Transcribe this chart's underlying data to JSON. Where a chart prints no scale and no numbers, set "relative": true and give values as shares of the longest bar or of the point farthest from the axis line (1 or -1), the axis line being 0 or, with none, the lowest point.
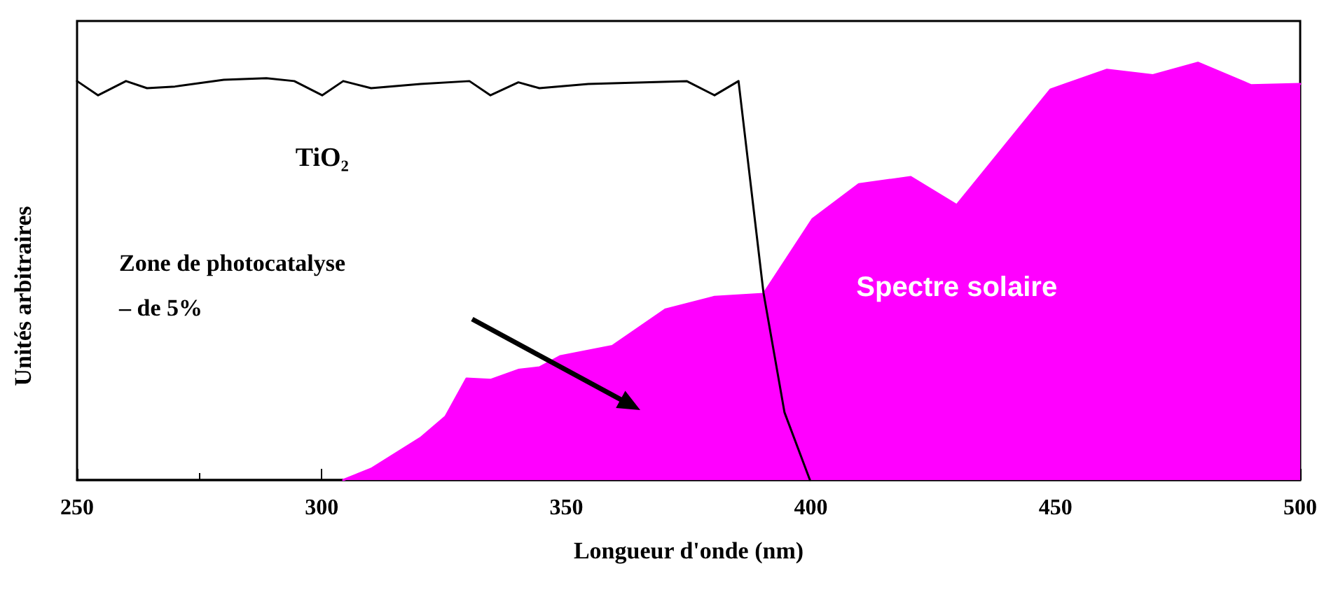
{
  "chart_data": {
    "type": "area",
    "relative": true,
    "xlabel": "Longueur d'onde (nm)",
    "ylabel": "Unités arbitraires",
    "xlim": [
      250,
      500
    ],
    "xticks": [
      250,
      300,
      350,
      400,
      450,
      500
    ],
    "grid": false,
    "legend": false,
    "marker": "none",
    "annotations": [
      "Zone de photocatalyse\n– de 5%"
    ],
    "series": [
      {
        "name": "Spectre solaire",
        "color": "#ff00ff",
        "x": [
          304.4,
          310.1,
          320.2,
          325.3,
          329.6,
          334.5,
          340.2,
          344.5,
          348.8,
          359.4,
          370.3,
          380.3,
          390.3,
          400.3,
          409.8,
          420.4,
          429.8,
          449,
          460.5,
          469.9,
          479.1,
          490,
          500
        ],
        "values": [
          0,
          0.027,
          0.101,
          0.152,
          0.243,
          0.24,
          0.264,
          0.27,
          0.297,
          0.321,
          0.409,
          0.439,
          0.446,
          0.625,
          0.709,
          0.726,
          0.659,
          0.936,
          0.983,
          0.97,
          1,
          0.946,
          0.949
        ]
      },
      {
        "name": "TiO₂",
        "type": "line",
        "color": "#000000",
        "x": [
          250,
          254.3,
          260,
          264.3,
          270,
          280,
          288.7,
          294.4,
          300.1,
          304.4,
          310.1,
          320.2,
          330.2,
          334.5,
          340.2,
          344.5,
          354.5,
          374.6,
          380.3,
          385.2,
          390.3,
          394.6,
          399.8
        ],
        "values": [
          0.956,
          0.922,
          0.956,
          0.939,
          0.943,
          0.959,
          0.963,
          0.956,
          0.922,
          0.956,
          0.939,
          0.949,
          0.956,
          0.922,
          0.953,
          0.939,
          0.949,
          0.956,
          0.922,
          0.956,
          0.449,
          0.162,
          0
        ]
      }
    ]
  }
}
